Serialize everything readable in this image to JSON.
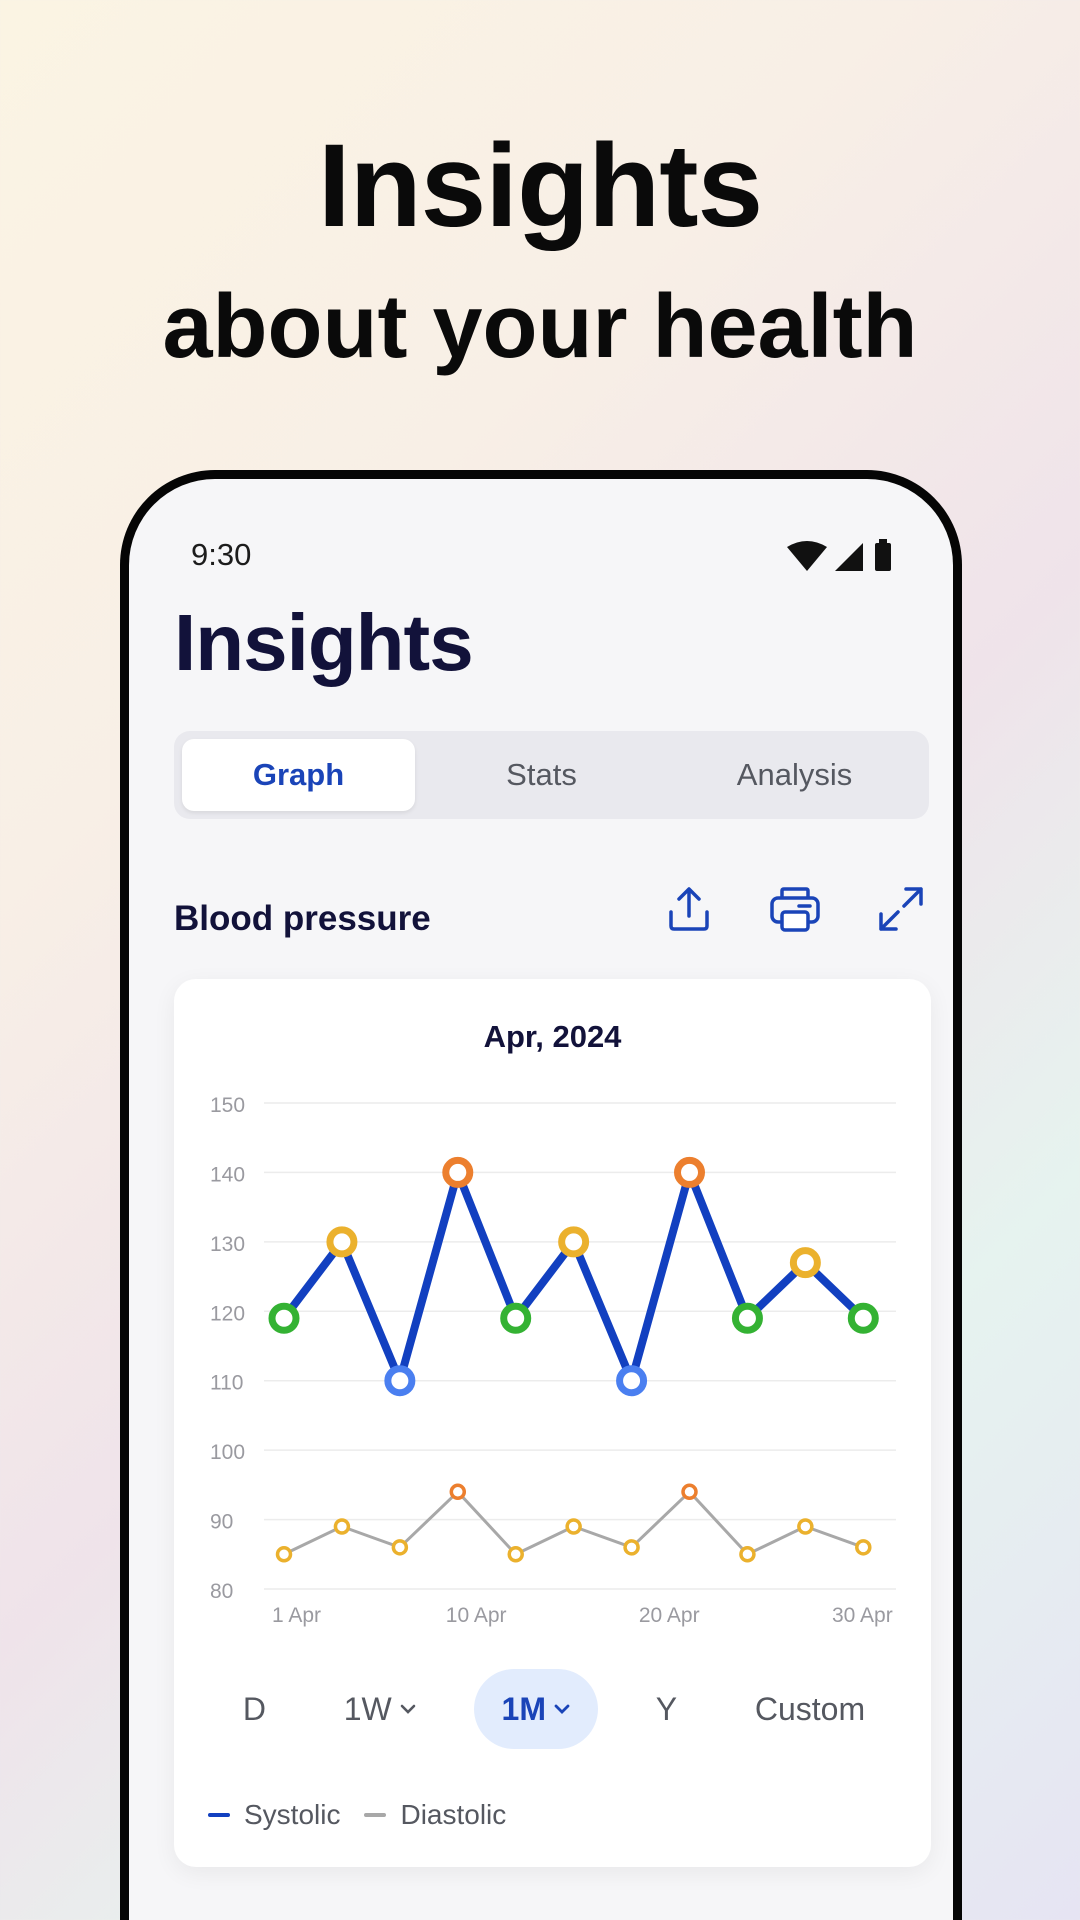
{
  "hero": {
    "title": "Insights",
    "subtitle": "about your health"
  },
  "status_bar": {
    "time": "9:30",
    "icons": [
      "wifi-icon",
      "signal-icon",
      "battery-icon"
    ]
  },
  "page": {
    "title": "Insights"
  },
  "tabs": [
    {
      "label": "Graph",
      "active": true
    },
    {
      "label": "Stats",
      "active": false
    },
    {
      "label": "Analysis",
      "active": false
    }
  ],
  "section": {
    "title": "Blood pressure",
    "actions": [
      "share-icon",
      "print-icon",
      "expand-icon"
    ]
  },
  "chart_data": {
    "type": "line",
    "title": "Apr, 2024",
    "xlabel": "",
    "ylabel": "",
    "ylim": [
      80,
      150
    ],
    "xlim": [
      1,
      30
    ],
    "y_ticks": [
      "150",
      "140",
      "130",
      "120",
      "110",
      "100",
      "90",
      "80"
    ],
    "x_ticks": [
      "1 Apr",
      "10 Apr",
      "20 Apr",
      "30 Apr"
    ],
    "x_tick_values": [
      1,
      10,
      20,
      30
    ],
    "grid": true,
    "series": [
      {
        "name": "Systolic",
        "color": "#1240c0",
        "x": [
          1,
          4,
          7,
          10,
          13,
          16,
          19,
          22,
          25,
          28,
          31
        ],
        "y": [
          119,
          130,
          110,
          140,
          119,
          130,
          110,
          140,
          119,
          127,
          119
        ]
      },
      {
        "name": "Diastolic",
        "color": "#a8a8a8",
        "x": [
          1,
          4,
          7,
          10,
          13,
          16,
          19,
          22,
          25,
          28,
          31
        ],
        "y": [
          85,
          89,
          86,
          94,
          85,
          89,
          86,
          94,
          85,
          89,
          86
        ]
      }
    ],
    "point_colors": {
      "normal": "#34b233",
      "elevated": "#ebb12d",
      "high": "#ec7f2e",
      "low": "#4a7ff0"
    }
  },
  "range_selector": [
    {
      "label": "D",
      "active": false,
      "dropdown": false
    },
    {
      "label": "1W",
      "active": false,
      "dropdown": true
    },
    {
      "label": "1M",
      "active": true,
      "dropdown": true
    },
    {
      "label": "Y",
      "active": false,
      "dropdown": false
    },
    {
      "label": "Custom",
      "active": false,
      "dropdown": false
    }
  ],
  "legend": [
    {
      "label": "Systolic",
      "color": "#1240c0"
    },
    {
      "label": "Diastolic",
      "color": "#a8a8a8"
    }
  ]
}
